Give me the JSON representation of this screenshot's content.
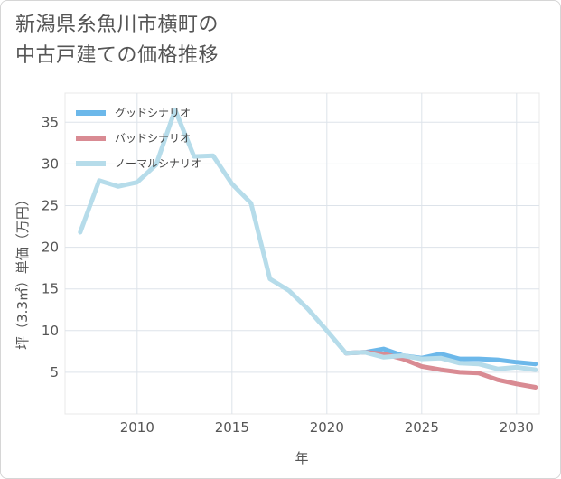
{
  "title_lines": [
    "新潟県糸魚川市横町の",
    "中古戸建ての価格推移"
  ],
  "chart_data": {
    "type": "line",
    "title": "新潟県糸魚川市横町の中古戸建ての価格推移",
    "xlabel": "年",
    "ylabel": "坪（3.3㎡）単価（万円）",
    "xlim": [
      2006.2,
      2031.2
    ],
    "ylim": [
      0,
      38.5
    ],
    "xticks": [
      2010,
      2015,
      2020,
      2025,
      2030
    ],
    "yticks": [
      5,
      10,
      15,
      20,
      25,
      30,
      35
    ],
    "grid": true,
    "legend_position": "top-left",
    "series": [
      {
        "name": "グッドシナリオ",
        "color": "#6cb8ea",
        "x": [
          2021,
          2022,
          2023,
          2024,
          2025,
          2026,
          2027,
          2028,
          2029,
          2030,
          2031
        ],
        "y": [
          7.3,
          7.4,
          7.8,
          7.0,
          6.7,
          7.2,
          6.6,
          6.6,
          6.5,
          6.2,
          6.0
        ]
      },
      {
        "name": "バッドシナリオ",
        "color": "#d98b93",
        "x": [
          2021,
          2022,
          2023,
          2024,
          2025,
          2026,
          2027,
          2028,
          2029,
          2030,
          2031
        ],
        "y": [
          7.3,
          7.4,
          7.2,
          6.6,
          5.7,
          5.3,
          5.0,
          4.9,
          4.1,
          3.6,
          3.2
        ]
      },
      {
        "name": "ノーマルシナリオ",
        "color": "#b6dcea",
        "x": [
          2007,
          2008,
          2009,
          2010,
          2011,
          2012,
          2013,
          2014,
          2015,
          2016,
          2017,
          2018,
          2019,
          2020,
          2021,
          2022,
          2023,
          2024,
          2025,
          2026,
          2027,
          2028,
          2029,
          2030,
          2031
        ],
        "y": [
          21.8,
          28.0,
          27.3,
          27.8,
          29.9,
          36.5,
          30.9,
          31.0,
          27.6,
          25.3,
          16.2,
          14.8,
          12.6,
          10.0,
          7.3,
          7.4,
          6.8,
          7.0,
          6.6,
          6.7,
          6.1,
          6.0,
          5.4,
          5.6,
          5.3
        ]
      }
    ]
  }
}
